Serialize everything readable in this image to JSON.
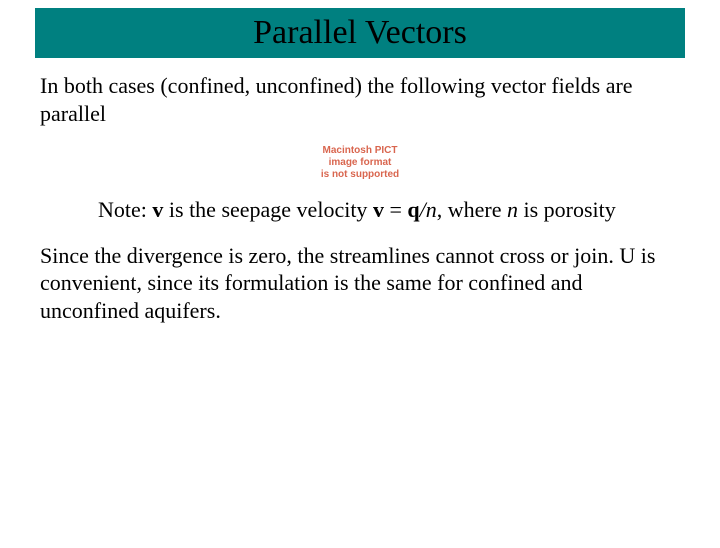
{
  "title": "Parallel Vectors",
  "intro": "In both cases (confined, unconfined) the following vector fields are parallel",
  "placeholder": {
    "line1": "Macintosh PICT",
    "line2": "image format",
    "line3": "is not supported"
  },
  "note": {
    "prefix": "Note: ",
    "v1": "v",
    "mid1": " is the seepage velocity ",
    "v2": "v",
    "eq1": " = ",
    "q": "q",
    "slash": "/",
    "n1": "n",
    "comma": ", where ",
    "n2": "n",
    "suffix": " is porosity"
  },
  "body": "Since the divergence is zero, the streamlines cannot cross or join. U is convenient, since its formulation is the same for confined and unconfined aquifers.",
  "colors": {
    "title_bg": "#008080",
    "title_fg": "#000000",
    "text": "#000000",
    "placeholder_text": "#d9664f",
    "page_bg": "#ffffff"
  },
  "fonts": {
    "body_family": "Times New Roman",
    "title_size_pt": 26,
    "body_size_pt": 17,
    "placeholder_size_pt": 8
  }
}
